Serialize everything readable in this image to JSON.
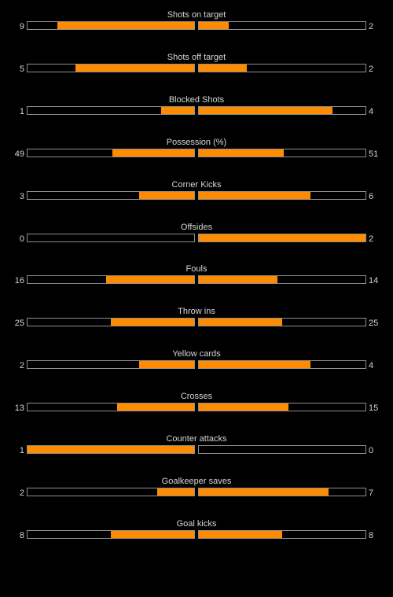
{
  "colors": {
    "background": "#000000",
    "bar_fill": "#ff8c00",
    "bar_border": "#8f8f8f",
    "text": "#d6d6d6"
  },
  "stats": [
    {
      "label": "Shots on target",
      "home": "9",
      "away": "2",
      "home_share": 0.82,
      "away_share": 0.18
    },
    {
      "label": "Shots off target",
      "home": "5",
      "away": "2",
      "home_share": 0.71,
      "away_share": 0.29
    },
    {
      "label": "Blocked Shots",
      "home": "1",
      "away": "4",
      "home_share": 0.2,
      "away_share": 0.8
    },
    {
      "label": "Possession (%)",
      "home": "49",
      "away": "51",
      "home_share": 0.49,
      "away_share": 0.51
    },
    {
      "label": "Corner Kicks",
      "home": "3",
      "away": "6",
      "home_share": 0.33,
      "away_share": 0.67
    },
    {
      "label": "Offsides",
      "home": "0",
      "away": "2",
      "home_share": 0.0,
      "away_share": 1.0
    },
    {
      "label": "Fouls",
      "home": "16",
      "away": "14",
      "home_share": 0.53,
      "away_share": 0.47
    },
    {
      "label": "Throw ins",
      "home": "25",
      "away": "25",
      "home_share": 0.5,
      "away_share": 0.5
    },
    {
      "label": "Yellow cards",
      "home": "2",
      "away": "4",
      "home_share": 0.33,
      "away_share": 0.67
    },
    {
      "label": "Crosses",
      "home": "13",
      "away": "15",
      "home_share": 0.46,
      "away_share": 0.54
    },
    {
      "label": "Counter attacks",
      "home": "1",
      "away": "0",
      "home_share": 1.0,
      "away_share": 0.0
    },
    {
      "label": "Goalkeeper saves",
      "home": "2",
      "away": "7",
      "home_share": 0.22,
      "away_share": 0.78
    },
    {
      "label": "Goal kicks",
      "home": "8",
      "away": "8",
      "home_share": 0.5,
      "away_share": 0.5
    }
  ]
}
